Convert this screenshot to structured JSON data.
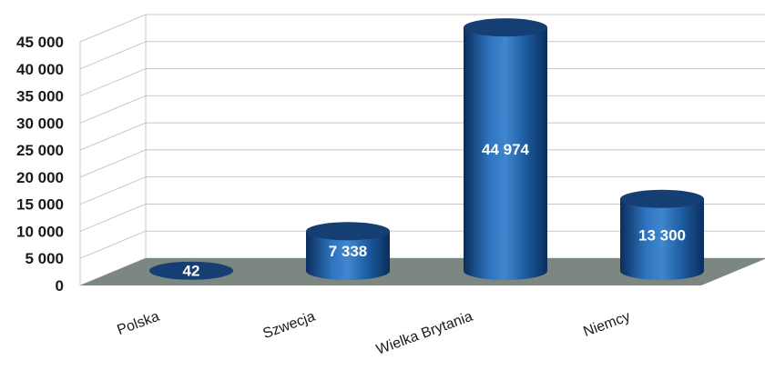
{
  "chart_data": {
    "type": "bar",
    "style": "3d-cylinder",
    "categories": [
      "Polska",
      "Szwecja",
      "Wielka Brytania",
      "Niemcy"
    ],
    "values": [
      42,
      7338,
      44974,
      13300
    ],
    "data_labels": [
      "42",
      "7 338",
      "44 974",
      "13 300"
    ],
    "y_ticks": [
      "0",
      "5 000",
      "10 000",
      "15 000",
      "20 000",
      "25 000",
      "30 000",
      "35 000",
      "40 000",
      "45 000"
    ],
    "ylim": [
      0,
      45000
    ],
    "grid": true,
    "legend": "none",
    "colors": {
      "bar_main": "#1b5a9c",
      "bar_dark": "#0b2d5c",
      "bar_light": "#3f86cf",
      "bar_top": "#153f73",
      "floor": "#7c8781",
      "grid": "#c8c8c8"
    }
  }
}
